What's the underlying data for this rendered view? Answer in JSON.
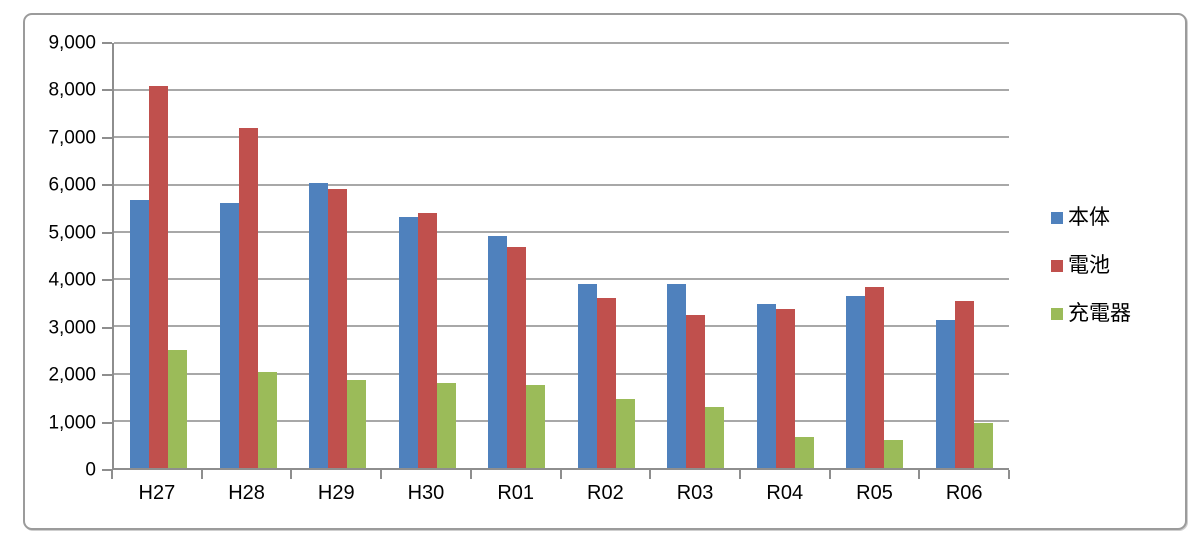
{
  "chart_data": {
    "type": "bar",
    "title": "",
    "xlabel": "",
    "ylabel": "",
    "categories": [
      "H27",
      "H28",
      "H29",
      "H30",
      "R01",
      "R02",
      "R03",
      "R04",
      "R05",
      "R06"
    ],
    "series": [
      {
        "name": "本体",
        "color": "#4F81BD",
        "values": [
          5670,
          5610,
          6030,
          5320,
          4920,
          3900,
          3890,
          3470,
          3650,
          3130
        ]
      },
      {
        "name": "電池",
        "color": "#C0504D",
        "values": [
          8100,
          7210,
          5900,
          5400,
          4690,
          3600,
          3250,
          3370,
          3840,
          3540
        ]
      },
      {
        "name": "充電器",
        "color": "#9BBB59",
        "values": [
          2500,
          2030,
          1860,
          1800,
          1750,
          1470,
          1300,
          650,
          600,
          950
        ]
      }
    ],
    "ylim": [
      0,
      9000
    ],
    "ytick_step": 1000,
    "ytick_labels": [
      "0",
      "1,000",
      "2,000",
      "3,000",
      "4,000",
      "5,000",
      "6,000",
      "7,000",
      "8,000",
      "9,000"
    ],
    "grid": true,
    "legend_position": "right"
  },
  "style": {
    "gridline_color": "#a8a8a8",
    "axis_color": "#8e8e8e",
    "frame_border_color": "#9b9b9b",
    "background": "#ffffff",
    "text_color": "#000000"
  }
}
